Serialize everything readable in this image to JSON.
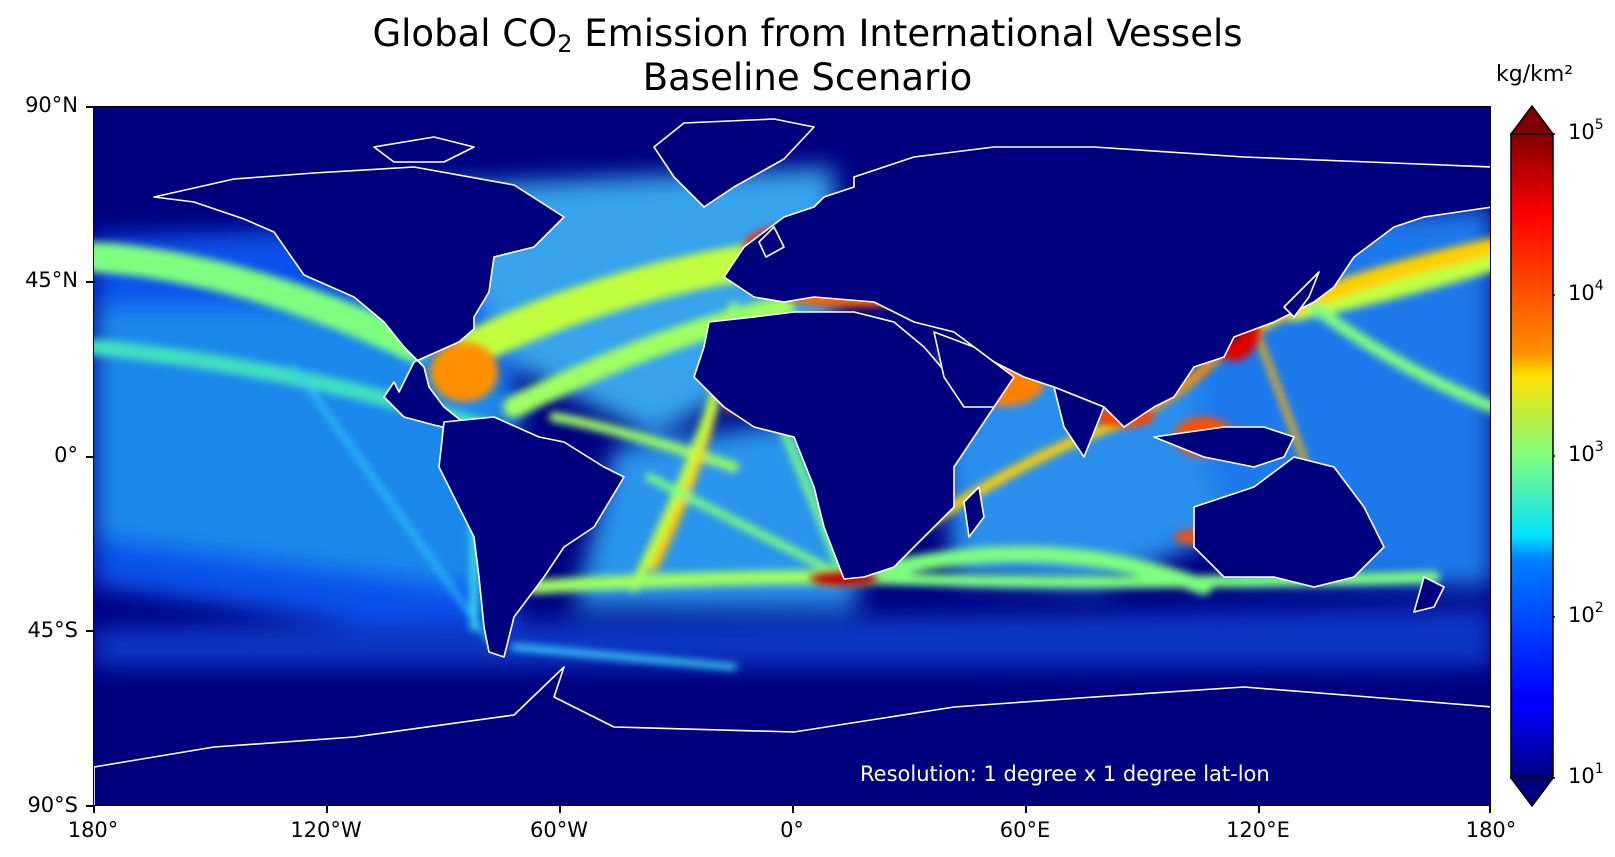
{
  "title_line1_pre": "Global CO",
  "title_line1_sub": "2",
  "title_line1_post": " Emission from International Vessels",
  "title_line2": "Baseline Scenario",
  "colorbar": {
    "unit": "kg/km²",
    "scale": "log",
    "min": 10,
    "max": 100000,
    "colormap": "jet",
    "extend": "both",
    "ticks": [
      {
        "base": "10",
        "exp": "1"
      },
      {
        "base": "10",
        "exp": "2"
      },
      {
        "base": "10",
        "exp": "3"
      },
      {
        "base": "10",
        "exp": "4"
      },
      {
        "base": "10",
        "exp": "5"
      }
    ]
  },
  "axes": {
    "y_ticks": [
      "90°N",
      "45°N",
      "0°",
      "45°S",
      "90°S"
    ],
    "x_ticks": [
      "180°",
      "120°W",
      "60°W",
      "0°",
      "60°E",
      "120°E",
      "180°"
    ]
  },
  "annotation": "Resolution: 1 degree x 1 degree lat-lon",
  "colors": {
    "background_zero": "#00007f",
    "coastline": "#ffffff",
    "jet_low": "#00007f",
    "jet_mid": "#7fff7f",
    "jet_high": "#7f0000"
  }
}
